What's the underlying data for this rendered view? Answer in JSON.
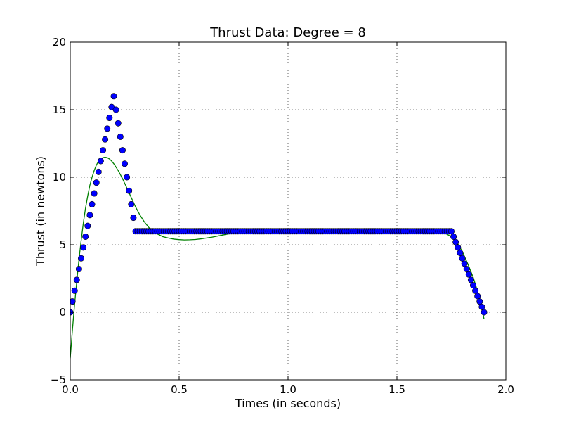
{
  "chart_data": {
    "type": "scatter",
    "title": "Thrust Data: Degree =  8",
    "xlabel": "Times (in seconds)",
    "ylabel": "Thrust (in newtons)",
    "xlim": [
      0.0,
      2.0
    ],
    "ylim": [
      -5,
      20
    ],
    "x_ticks": [
      "0.0",
      "0.5",
      "1.0",
      "1.5",
      "2.0"
    ],
    "x_tick_values": [
      0.0,
      0.5,
      1.0,
      1.5,
      2.0
    ],
    "y_ticks": [
      "−5",
      "0",
      "5",
      "10",
      "15",
      "20"
    ],
    "y_tick_values": [
      -5,
      0,
      5,
      10,
      15,
      20
    ],
    "grid": true,
    "series": [
      {
        "type": "scatter",
        "color": "#0000ff",
        "points": [
          [
            0.0,
            0.0
          ],
          [
            0.01,
            0.8
          ],
          [
            0.02,
            1.6
          ],
          [
            0.03,
            2.4
          ],
          [
            0.04,
            3.2
          ],
          [
            0.05,
            4.0
          ],
          [
            0.06,
            4.8
          ],
          [
            0.07,
            5.6
          ],
          [
            0.08,
            6.4
          ],
          [
            0.09,
            7.2
          ],
          [
            0.1,
            8.0
          ],
          [
            0.11,
            8.8
          ],
          [
            0.12,
            9.6
          ],
          [
            0.13,
            10.4
          ],
          [
            0.14,
            11.2
          ],
          [
            0.15,
            12.0
          ],
          [
            0.16,
            12.8
          ],
          [
            0.17,
            13.6
          ],
          [
            0.18,
            14.4
          ],
          [
            0.19,
            15.2
          ],
          [
            0.2,
            16.0
          ],
          [
            0.21,
            15.0
          ],
          [
            0.22,
            14.0
          ],
          [
            0.23,
            13.0
          ],
          [
            0.24,
            12.0
          ],
          [
            0.25,
            11.0
          ],
          [
            0.26,
            10.0
          ],
          [
            0.27,
            9.0
          ],
          [
            0.28,
            8.0
          ],
          [
            0.29,
            7.0
          ],
          [
            0.3,
            6.0
          ],
          [
            0.31,
            6.0
          ],
          [
            0.32,
            6.0
          ],
          [
            0.33,
            6.0
          ],
          [
            0.34,
            6.0
          ],
          [
            0.35,
            6.0
          ],
          [
            0.36,
            6.0
          ],
          [
            0.37,
            6.0
          ],
          [
            0.38,
            6.0
          ],
          [
            0.39,
            6.0
          ],
          [
            0.4,
            6.0
          ],
          [
            0.41,
            6.0
          ],
          [
            0.42,
            6.0
          ],
          [
            0.43,
            6.0
          ],
          [
            0.44,
            6.0
          ],
          [
            0.45,
            6.0
          ],
          [
            0.46,
            6.0
          ],
          [
            0.47,
            6.0
          ],
          [
            0.48,
            6.0
          ],
          [
            0.49,
            6.0
          ],
          [
            0.5,
            6.0
          ],
          [
            0.51,
            6.0
          ],
          [
            0.52,
            6.0
          ],
          [
            0.53,
            6.0
          ],
          [
            0.54,
            6.0
          ],
          [
            0.55,
            6.0
          ],
          [
            0.56,
            6.0
          ],
          [
            0.57,
            6.0
          ],
          [
            0.58,
            6.0
          ],
          [
            0.59,
            6.0
          ],
          [
            0.6,
            6.0
          ],
          [
            0.61,
            6.0
          ],
          [
            0.62,
            6.0
          ],
          [
            0.63,
            6.0
          ],
          [
            0.64,
            6.0
          ],
          [
            0.65,
            6.0
          ],
          [
            0.66,
            6.0
          ],
          [
            0.67,
            6.0
          ],
          [
            0.68,
            6.0
          ],
          [
            0.69,
            6.0
          ],
          [
            0.7,
            6.0
          ],
          [
            0.71,
            6.0
          ],
          [
            0.72,
            6.0
          ],
          [
            0.73,
            6.0
          ],
          [
            0.74,
            6.0
          ],
          [
            0.75,
            6.0
          ],
          [
            0.76,
            6.0
          ],
          [
            0.77,
            6.0
          ],
          [
            0.78,
            6.0
          ],
          [
            0.79,
            6.0
          ],
          [
            0.8,
            6.0
          ],
          [
            0.81,
            6.0
          ],
          [
            0.82,
            6.0
          ],
          [
            0.83,
            6.0
          ],
          [
            0.84,
            6.0
          ],
          [
            0.85,
            6.0
          ],
          [
            0.86,
            6.0
          ],
          [
            0.87,
            6.0
          ],
          [
            0.88,
            6.0
          ],
          [
            0.89,
            6.0
          ],
          [
            0.9,
            6.0
          ],
          [
            0.91,
            6.0
          ],
          [
            0.92,
            6.0
          ],
          [
            0.93,
            6.0
          ],
          [
            0.94,
            6.0
          ],
          [
            0.95,
            6.0
          ],
          [
            0.96,
            6.0
          ],
          [
            0.97,
            6.0
          ],
          [
            0.98,
            6.0
          ],
          [
            0.99,
            6.0
          ],
          [
            1.0,
            6.0
          ],
          [
            1.01,
            6.0
          ],
          [
            1.02,
            6.0
          ],
          [
            1.03,
            6.0
          ],
          [
            1.04,
            6.0
          ],
          [
            1.05,
            6.0
          ],
          [
            1.06,
            6.0
          ],
          [
            1.07,
            6.0
          ],
          [
            1.08,
            6.0
          ],
          [
            1.09,
            6.0
          ],
          [
            1.1,
            6.0
          ],
          [
            1.11,
            6.0
          ],
          [
            1.12,
            6.0
          ],
          [
            1.13,
            6.0
          ],
          [
            1.14,
            6.0
          ],
          [
            1.15,
            6.0
          ],
          [
            1.16,
            6.0
          ],
          [
            1.17,
            6.0
          ],
          [
            1.18,
            6.0
          ],
          [
            1.19,
            6.0
          ],
          [
            1.2,
            6.0
          ],
          [
            1.21,
            6.0
          ],
          [
            1.22,
            6.0
          ],
          [
            1.23,
            6.0
          ],
          [
            1.24,
            6.0
          ],
          [
            1.25,
            6.0
          ],
          [
            1.26,
            6.0
          ],
          [
            1.27,
            6.0
          ],
          [
            1.28,
            6.0
          ],
          [
            1.29,
            6.0
          ],
          [
            1.3,
            6.0
          ],
          [
            1.31,
            6.0
          ],
          [
            1.32,
            6.0
          ],
          [
            1.33,
            6.0
          ],
          [
            1.34,
            6.0
          ],
          [
            1.35,
            6.0
          ],
          [
            1.36,
            6.0
          ],
          [
            1.37,
            6.0
          ],
          [
            1.38,
            6.0
          ],
          [
            1.39,
            6.0
          ],
          [
            1.4,
            6.0
          ],
          [
            1.41,
            6.0
          ],
          [
            1.42,
            6.0
          ],
          [
            1.43,
            6.0
          ],
          [
            1.44,
            6.0
          ],
          [
            1.45,
            6.0
          ],
          [
            1.46,
            6.0
          ],
          [
            1.47,
            6.0
          ],
          [
            1.48,
            6.0
          ],
          [
            1.49,
            6.0
          ],
          [
            1.5,
            6.0
          ],
          [
            1.51,
            6.0
          ],
          [
            1.52,
            6.0
          ],
          [
            1.53,
            6.0
          ],
          [
            1.54,
            6.0
          ],
          [
            1.55,
            6.0
          ],
          [
            1.56,
            6.0
          ],
          [
            1.57,
            6.0
          ],
          [
            1.58,
            6.0
          ],
          [
            1.59,
            6.0
          ],
          [
            1.6,
            6.0
          ],
          [
            1.61,
            6.0
          ],
          [
            1.62,
            6.0
          ],
          [
            1.63,
            6.0
          ],
          [
            1.64,
            6.0
          ],
          [
            1.65,
            6.0
          ],
          [
            1.66,
            6.0
          ],
          [
            1.67,
            6.0
          ],
          [
            1.68,
            6.0
          ],
          [
            1.69,
            6.0
          ],
          [
            1.7,
            6.0
          ],
          [
            1.71,
            6.0
          ],
          [
            1.72,
            6.0
          ],
          [
            1.73,
            6.0
          ],
          [
            1.74,
            6.0
          ],
          [
            1.75,
            6.0
          ],
          [
            1.76,
            5.6
          ],
          [
            1.77,
            5.2
          ],
          [
            1.78,
            4.8
          ],
          [
            1.79,
            4.4
          ],
          [
            1.8,
            4.0
          ],
          [
            1.81,
            3.6
          ],
          [
            1.82,
            3.2
          ],
          [
            1.83,
            2.8
          ],
          [
            1.84,
            2.4
          ],
          [
            1.85,
            2.0
          ],
          [
            1.86,
            1.6
          ],
          [
            1.87,
            1.2
          ],
          [
            1.88,
            0.8
          ],
          [
            1.89,
            0.4
          ],
          [
            1.9,
            0.0
          ]
        ]
      },
      {
        "type": "line",
        "color": "#008000",
        "points": [
          [
            0.0,
            -3.4
          ],
          [
            0.01,
            -1.3
          ],
          [
            0.02,
            0.6
          ],
          [
            0.03,
            2.3
          ],
          [
            0.04,
            3.9
          ],
          [
            0.05,
            5.3
          ],
          [
            0.06,
            6.6
          ],
          [
            0.07,
            7.7
          ],
          [
            0.08,
            8.6
          ],
          [
            0.09,
            9.4
          ],
          [
            0.1,
            10.0
          ],
          [
            0.11,
            10.5
          ],
          [
            0.12,
            10.9
          ],
          [
            0.13,
            11.2
          ],
          [
            0.14,
            11.35
          ],
          [
            0.15,
            11.45
          ],
          [
            0.16,
            11.48
          ],
          [
            0.17,
            11.45
          ],
          [
            0.18,
            11.35
          ],
          [
            0.19,
            11.2
          ],
          [
            0.2,
            11.0
          ],
          [
            0.22,
            10.5
          ],
          [
            0.24,
            9.9
          ],
          [
            0.26,
            9.2
          ],
          [
            0.28,
            8.5
          ],
          [
            0.3,
            7.8
          ],
          [
            0.32,
            7.2
          ],
          [
            0.34,
            6.7
          ],
          [
            0.36,
            6.3
          ],
          [
            0.38,
            6.0
          ],
          [
            0.4,
            5.8
          ],
          [
            0.425,
            5.6
          ],
          [
            0.45,
            5.5
          ],
          [
            0.475,
            5.42
          ],
          [
            0.5,
            5.38
          ],
          [
            0.525,
            5.36
          ],
          [
            0.55,
            5.37
          ],
          [
            0.575,
            5.39
          ],
          [
            0.6,
            5.44
          ],
          [
            0.65,
            5.56
          ],
          [
            0.7,
            5.72
          ],
          [
            0.75,
            5.88
          ],
          [
            0.8,
            6.01
          ],
          [
            0.85,
            6.1
          ],
          [
            0.9,
            6.15
          ],
          [
            0.95,
            6.13
          ],
          [
            1.0,
            6.07
          ],
          [
            1.05,
            6.0
          ],
          [
            1.1,
            5.93
          ],
          [
            1.15,
            5.88
          ],
          [
            1.2,
            5.86
          ],
          [
            1.25,
            5.87
          ],
          [
            1.3,
            5.9
          ],
          [
            1.35,
            5.95
          ],
          [
            1.4,
            6.0
          ],
          [
            1.45,
            6.04
          ],
          [
            1.5,
            6.08
          ],
          [
            1.55,
            6.1
          ],
          [
            1.6,
            6.1
          ],
          [
            1.65,
            6.06
          ],
          [
            1.7,
            5.95
          ],
          [
            1.725,
            5.82
          ],
          [
            1.75,
            5.6
          ],
          [
            1.775,
            5.2
          ],
          [
            1.8,
            4.5
          ],
          [
            1.825,
            3.6
          ],
          [
            1.85,
            2.6
          ],
          [
            1.875,
            1.3
          ],
          [
            1.9,
            -0.5
          ]
        ]
      }
    ]
  }
}
